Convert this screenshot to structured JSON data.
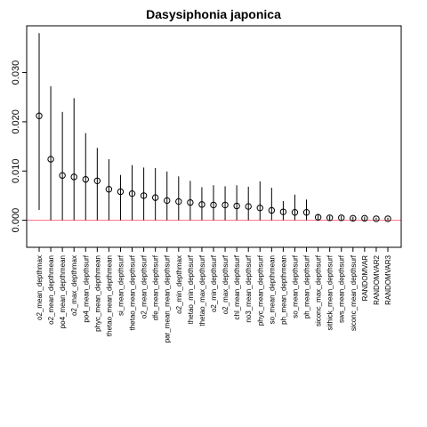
{
  "chart_data": {
    "type": "scatter",
    "title": "Dasysiphonia japonica",
    "xlabel": "",
    "ylabel": "",
    "ylim": [
      -0.0055,
      0.0395
    ],
    "y_ticks": [
      "0.000",
      "0.010",
      "0.020",
      "0.030"
    ],
    "grid": false,
    "legend": "none",
    "reference_line": {
      "y": 0,
      "color": "#ff6b81"
    },
    "point_style": "open-circle",
    "categories": [
      "o2_mean_depthmax",
      "o2_mean_depthmean",
      "po4_mean_depthmean",
      "o2_max_depthmax",
      "po4_mean_depthsurf",
      "phyc_mean_depthmean",
      "thetao_mean_depthmean",
      "si_mean_depthsurf",
      "thetao_mean_depthsurf",
      "o2_mean_depthsurf",
      "dfe_mean_depthsurf",
      "par_mean_mean_depthsurf",
      "o2_min_depthmax",
      "thetao_min_depthsurf",
      "thetao_max_depthsurf",
      "o2_min_depthsurf",
      "o2_max_depthsurf",
      "chl_mean_depthsurf",
      "no3_mean_depthsurf",
      "phyc_mean_depthsurf",
      "so_mean_depthmean",
      "ph_mean_depthmean",
      "so_mean_depthsurf",
      "ph_mean_depthsurf",
      "siconc_max_depthsurf",
      "sithick_mean_depthsurf",
      "sws_mean_depthsurf",
      "siconc_mean_depthsurf",
      "RANDOMVAR",
      "RANDOMVAR2",
      "RANDOMVAR3"
    ],
    "values": [
      0.0212,
      0.0124,
      0.0091,
      0.0088,
      0.0083,
      0.008,
      0.0063,
      0.0058,
      0.0054,
      0.005,
      0.0046,
      0.004,
      0.0038,
      0.0036,
      0.0032,
      0.0031,
      0.0031,
      0.0029,
      0.0028,
      0.0025,
      0.002,
      0.0017,
      0.0016,
      0.0016,
      0.0006,
      0.0005,
      0.0005,
      0.0004,
      0.0004,
      0.0003,
      0.0003
    ],
    "error_upper": [
      0.038,
      0.0272,
      0.022,
      0.0248,
      0.0177,
      0.0147,
      0.0124,
      0.0092,
      0.0112,
      0.0107,
      0.0106,
      0.0099,
      0.0089,
      0.008,
      0.0067,
      0.0071,
      0.0069,
      0.0071,
      0.0068,
      0.0079,
      0.0066,
      0.0039,
      0.0052,
      0.0042,
      0.0012,
      0.0009,
      0.0009,
      0.0007,
      0.0007,
      0.0005,
      0.0005
    ],
    "error_lower": [
      0.0021,
      0.0,
      0.0,
      0.0,
      0.0,
      0.0,
      0.0,
      0.0,
      0.0,
      0.0,
      0.0,
      0.0,
      0.0,
      0.0,
      0.0,
      0.0,
      0.0,
      0.0,
      0.0,
      0.0,
      0.0,
      0.0,
      0.0,
      0.0,
      0.0,
      0.0,
      0.0,
      0.0,
      0.0,
      0.0,
      0.0
    ]
  }
}
